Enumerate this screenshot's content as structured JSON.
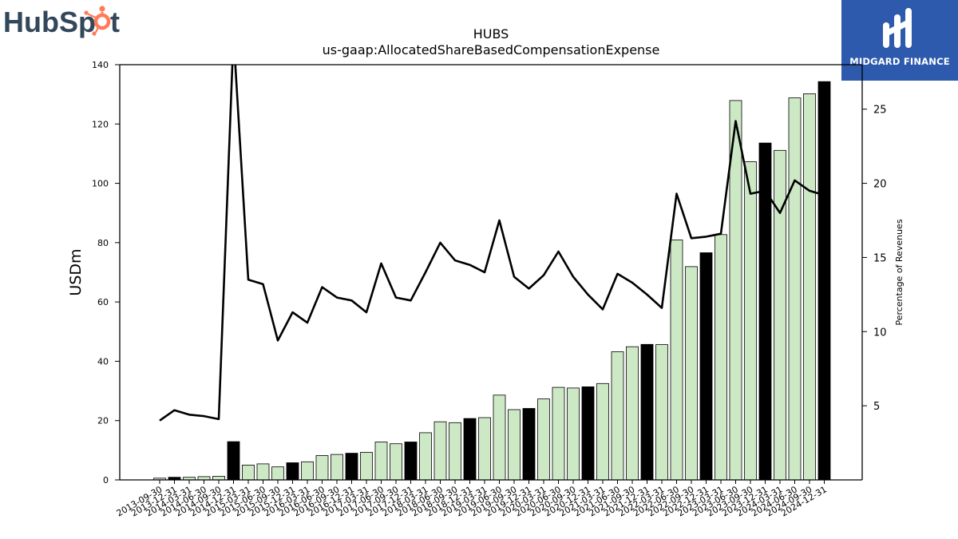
{
  "logos": {
    "left": "HubSpot",
    "right": "MIDGARD FINANCE"
  },
  "chart_data": {
    "type": "bar",
    "title": "HUBS",
    "subtitle": "us-gaap:AllocatedShareBasedCompensationExpense",
    "ylabel": "USDm",
    "y2label": "Percentage of Revenues",
    "ylim": [
      0,
      140
    ],
    "y2lim": [
      0,
      28
    ],
    "yticks": [
      0,
      20,
      40,
      60,
      80,
      100,
      120,
      140
    ],
    "y2ticks": [
      5,
      10,
      15,
      20,
      25
    ],
    "grid": false,
    "colors": {
      "quarter_bar": "#cde8c5",
      "annual_bar": "#000000",
      "line": "#000000"
    },
    "categories": [
      "2013-09-30",
      "2013-12-31",
      "2014-03-31",
      "2014-06-30",
      "2014-09-30",
      "2014-12-31",
      "2015-03-31",
      "2015-06-30",
      "2015-09-30",
      "2015-12-31",
      "2016-03-31",
      "2016-06-30",
      "2016-09-30",
      "2016-12-31",
      "2017-03-31",
      "2017-06-30",
      "2017-09-30",
      "2017-12-31",
      "2018-03-31",
      "2018-06-30",
      "2018-09-30",
      "2018-12-31",
      "2019-03-31",
      "2019-06-30",
      "2019-09-30",
      "2019-12-31",
      "2020-03-31",
      "2020-06-30",
      "2020-09-30",
      "2020-12-31",
      "2021-03-31",
      "2021-06-30",
      "2021-09-30",
      "2021-12-31",
      "2022-03-31",
      "2022-06-30",
      "2022-09-30",
      "2022-12-31",
      "2023-03-31",
      "2023-06-30",
      "2023-09-30",
      "2023-12-31",
      "2024-03-31",
      "2024-06-30",
      "2024-09-30",
      "2024-12-31"
    ],
    "series": [
      {
        "kind": "bar",
        "axis": "left",
        "values": [
          0.6,
          0.9,
          0.9,
          1.1,
          1.2,
          12.9,
          5.0,
          5.4,
          4.4,
          5.8,
          6.1,
          8.2,
          8.6,
          9.0,
          9.3,
          12.8,
          12.2,
          12.8,
          15.9,
          19.6,
          19.3,
          20.7,
          21.0,
          28.6,
          23.7,
          24.1,
          27.3,
          31.2,
          31.0,
          31.4,
          32.5,
          43.2,
          44.9,
          45.7,
          45.6,
          80.9,
          71.9,
          76.6,
          82.7,
          127.9,
          107.3,
          113.6,
          111.1,
          128.8,
          130.2,
          134.3
        ],
        "annual": [
          false,
          true,
          false,
          false,
          false,
          true,
          false,
          false,
          false,
          true,
          false,
          false,
          false,
          true,
          false,
          false,
          false,
          true,
          false,
          false,
          false,
          true,
          false,
          false,
          false,
          true,
          false,
          false,
          false,
          true,
          false,
          false,
          false,
          true,
          false,
          false,
          false,
          true,
          false,
          false,
          false,
          true,
          false,
          false,
          false,
          true
        ]
      },
      {
        "kind": "line",
        "axis": "right",
        "values": [
          4.0,
          4.7,
          4.4,
          4.3,
          4.1,
          30.0,
          13.5,
          13.2,
          9.4,
          11.3,
          10.6,
          13.0,
          12.3,
          12.1,
          11.3,
          14.6,
          12.3,
          12.1,
          14.0,
          16.0,
          14.8,
          14.5,
          14.0,
          17.5,
          13.7,
          12.9,
          13.8,
          15.4,
          13.7,
          12.5,
          11.5,
          13.9,
          13.3,
          12.5,
          11.6,
          19.3,
          16.3,
          16.4,
          16.6,
          24.2,
          19.3,
          19.5,
          18.0,
          20.2,
          19.5,
          19.2
        ]
      }
    ]
  }
}
